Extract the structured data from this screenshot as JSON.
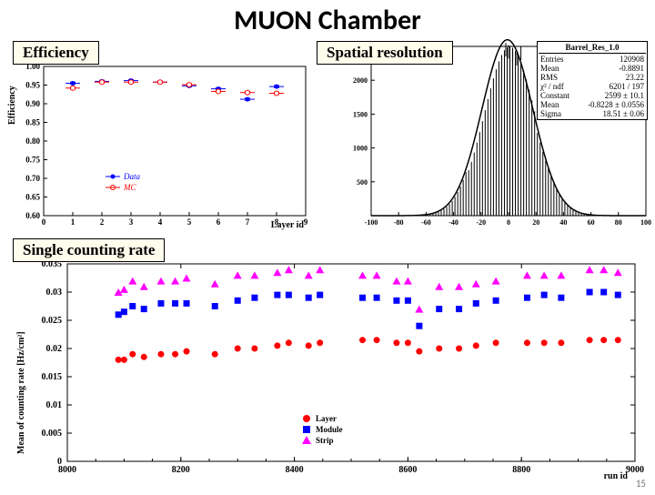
{
  "title": "MUON Chamber",
  "page_number": "15",
  "labels": {
    "efficiency": "Efficiency",
    "spatial": "Spatial resolution",
    "single": "Single counting rate"
  },
  "efficiency_chart": {
    "type": "scatter",
    "xlabel": "Layer id",
    "ylabel": "Efficiency",
    "xlim": [
      0,
      9
    ],
    "xtick_step": 1,
    "ylim": [
      0.6,
      1.0
    ],
    "ytick_step": 0.05,
    "grid": false,
    "frame_color": "#000000",
    "series": [
      {
        "name": "Data",
        "color": "#0000ff",
        "marker": "circle-filled",
        "x": [
          1,
          2,
          3,
          4,
          5,
          6,
          7,
          8
        ],
        "y": [
          0.955,
          0.96,
          0.962,
          0.958,
          0.948,
          0.94,
          0.912,
          0.946
        ],
        "yerr": [
          0.003,
          0.003,
          0.003,
          0.003,
          0.003,
          0.003,
          0.003,
          0.003
        ]
      },
      {
        "name": "MC",
        "color": "#ff0000",
        "marker": "circle-open",
        "x": [
          1,
          2,
          3,
          4,
          5,
          6,
          7,
          8
        ],
        "y": [
          0.942,
          0.958,
          0.958,
          0.958,
          0.951,
          0.933,
          0.93,
          0.928
        ],
        "yerr": [
          0.003,
          0.003,
          0.003,
          0.003,
          0.003,
          0.003,
          0.003,
          0.003
        ]
      }
    ],
    "legend": {
      "position": "mid-left"
    }
  },
  "spatial_chart": {
    "type": "histogram-fit",
    "xlabel": "",
    "ylabel": "",
    "xlim": [
      -100,
      100
    ],
    "xtick_step": 20,
    "ylim": [
      0,
      2500
    ],
    "ytick_step": 500,
    "bar_color": "#000000",
    "fit_color": "#000000",
    "background_color": "#ffffff",
    "frame_color": "#000000",
    "fit": {
      "mean": -0.8228,
      "sigma": 18.51,
      "constant": 2599
    },
    "stats": {
      "title": "Barrel_Res_1.0",
      "rows": [
        [
          "Entries",
          "120908"
        ],
        [
          "Mean",
          "-0.8891"
        ],
        [
          "RMS",
          "23.22"
        ],
        [
          "χ² / ndf",
          "6201 / 197"
        ],
        [
          "Constant",
          "2599 ± 10.1"
        ],
        [
          "Mean",
          "-0.8228 ± 0.0556"
        ],
        [
          "Sigma",
          "18.51 ± 0.06"
        ]
      ]
    }
  },
  "counting_chart": {
    "type": "scatter",
    "xlabel": "run id",
    "ylabel": "Mean of counting rate [Hz/cm²]",
    "xlim": [
      8000,
      9000
    ],
    "xtick_step": 200,
    "ylim": [
      0,
      0.035
    ],
    "ytick_step": 0.005,
    "grid": false,
    "frame_color": "#000000",
    "series": [
      {
        "name": "Layer",
        "color": "#ff0000",
        "marker": "circle",
        "runs": [
          8090,
          8100,
          8115,
          8135,
          8165,
          8190,
          8210,
          8260,
          8300,
          8330,
          8370,
          8390,
          8425,
          8445,
          8520,
          8545,
          8580,
          8600,
          8620,
          8655,
          8690,
          8720,
          8755,
          8810,
          8840,
          8870,
          8920,
          8945,
          8970
        ],
        "vals": [
          0.018,
          0.018,
          0.019,
          0.0185,
          0.019,
          0.019,
          0.0195,
          0.019,
          0.02,
          0.02,
          0.0205,
          0.021,
          0.0205,
          0.021,
          0.0215,
          0.0215,
          0.021,
          0.021,
          0.0195,
          0.02,
          0.02,
          0.0205,
          0.021,
          0.021,
          0.021,
          0.021,
          0.0215,
          0.0215,
          0.0215
        ]
      },
      {
        "name": "Module",
        "color": "#0000ff",
        "marker": "square",
        "runs": [
          8090,
          8100,
          8115,
          8135,
          8165,
          8190,
          8210,
          8260,
          8300,
          8330,
          8370,
          8390,
          8425,
          8445,
          8520,
          8545,
          8580,
          8600,
          8620,
          8655,
          8690,
          8720,
          8755,
          8810,
          8840,
          8870,
          8920,
          8945,
          8970
        ],
        "vals": [
          0.026,
          0.0265,
          0.0275,
          0.027,
          0.028,
          0.028,
          0.028,
          0.0275,
          0.0285,
          0.029,
          0.0295,
          0.0295,
          0.029,
          0.0295,
          0.029,
          0.029,
          0.0285,
          0.0285,
          0.024,
          0.027,
          0.027,
          0.028,
          0.0285,
          0.029,
          0.0295,
          0.029,
          0.03,
          0.03,
          0.0295
        ]
      },
      {
        "name": "Strip",
        "color": "#ff00ff",
        "marker": "triangle",
        "runs": [
          8090,
          8100,
          8115,
          8135,
          8165,
          8190,
          8210,
          8260,
          8300,
          8330,
          8370,
          8390,
          8425,
          8445,
          8520,
          8545,
          8580,
          8600,
          8620,
          8655,
          8690,
          8720,
          8755,
          8810,
          8840,
          8870,
          8920,
          8945,
          8970
        ],
        "vals": [
          0.03,
          0.0305,
          0.032,
          0.031,
          0.032,
          0.032,
          0.0325,
          0.0315,
          0.033,
          0.033,
          0.0335,
          0.034,
          0.033,
          0.034,
          0.033,
          0.033,
          0.032,
          0.032,
          0.027,
          0.031,
          0.031,
          0.0315,
          0.032,
          0.033,
          0.033,
          0.033,
          0.034,
          0.034,
          0.0335
        ]
      }
    ],
    "legend": {
      "position": "bottom-center"
    }
  }
}
